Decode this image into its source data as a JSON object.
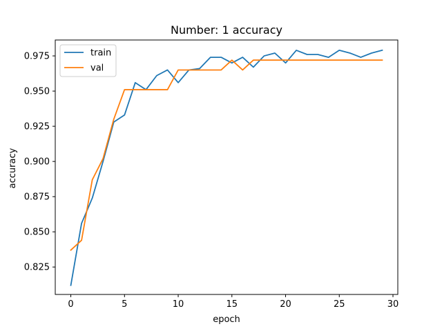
{
  "chart_data": {
    "type": "line",
    "title": "Number: 1 accuracy",
    "xlabel": "epoch",
    "ylabel": "accuracy",
    "xlim": [
      -1.45,
      30.45
    ],
    "ylim": [
      0.8055,
      0.9863
    ],
    "xticks": [
      0,
      5,
      10,
      15,
      20,
      25,
      30
    ],
    "xtick_labels": [
      "0",
      "5",
      "10",
      "15",
      "20",
      "25",
      "30"
    ],
    "yticks": [
      0.825,
      0.85,
      0.875,
      0.9,
      0.925,
      0.95,
      0.975
    ],
    "ytick_labels": [
      "0.825",
      "0.850",
      "0.875",
      "0.900",
      "0.925",
      "0.950",
      "0.975"
    ],
    "grid": false,
    "legend_position": "upper-left",
    "x": [
      0,
      1,
      2,
      3,
      4,
      5,
      6,
      7,
      8,
      9,
      10,
      11,
      12,
      13,
      14,
      15,
      16,
      17,
      18,
      19,
      20,
      21,
      22,
      23,
      24,
      25,
      26,
      27,
      28,
      29
    ],
    "series": [
      {
        "name": "train",
        "color": "#1f77b4",
        "values": [
          0.812,
          0.856,
          0.874,
          0.9,
          0.928,
          0.933,
          0.956,
          0.951,
          0.961,
          0.965,
          0.956,
          0.965,
          0.966,
          0.974,
          0.974,
          0.97,
          0.974,
          0.967,
          0.975,
          0.977,
          0.97,
          0.979,
          0.976,
          0.976,
          0.974,
          0.979,
          0.977,
          0.974,
          0.977,
          0.979
        ]
      },
      {
        "name": "val",
        "color": "#ff7f0e",
        "values": [
          0.837,
          0.844,
          0.887,
          0.902,
          0.93,
          0.951,
          0.951,
          0.951,
          0.951,
          0.951,
          0.965,
          0.965,
          0.965,
          0.965,
          0.965,
          0.972,
          0.965,
          0.972,
          0.972,
          0.972,
          0.972,
          0.972,
          0.972,
          0.972,
          0.972,
          0.972,
          0.972,
          0.972,
          0.972,
          0.972
        ]
      }
    ]
  }
}
